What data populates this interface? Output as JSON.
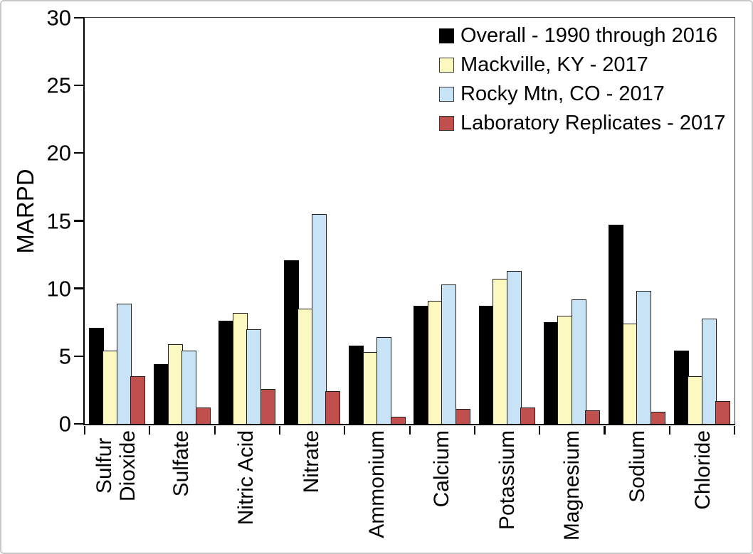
{
  "chart_data": {
    "type": "bar",
    "title": "",
    "xlabel": "",
    "ylabel": "MARPD",
    "ylim": [
      0,
      30
    ],
    "yticks": [
      0,
      5,
      10,
      15,
      20,
      25,
      30
    ],
    "grid": false,
    "legend_position": "top-right-inside",
    "categories": [
      "Sulfur\nDioxide",
      "Sulfate",
      "Nitric Acid",
      "Nitrate",
      "Ammonium",
      "Calcium",
      "Potassium",
      "Magnesium",
      "Sodium",
      "Chloride"
    ],
    "series": [
      {
        "name": "Overall - 1990 through 2016",
        "color": "#000000",
        "values": [
          7.1,
          4.4,
          7.6,
          12.1,
          5.8,
          8.7,
          8.7,
          7.5,
          14.7,
          5.4
        ]
      },
      {
        "name": "Mackville, KY - 2017",
        "color": "#FBF8C0",
        "values": [
          5.4,
          5.9,
          8.2,
          8.5,
          5.3,
          9.1,
          10.7,
          8.0,
          7.4,
          3.5
        ]
      },
      {
        "name": "Rocky Mtn, CO - 2017",
        "color": "#C9E3F6",
        "values": [
          8.9,
          5.4,
          7.0,
          15.5,
          6.4,
          10.3,
          11.3,
          9.2,
          9.8,
          7.8
        ]
      },
      {
        "name": "Laboratory Replicates - 2017",
        "color": "#C0504D",
        "values": [
          3.5,
          1.2,
          2.6,
          2.4,
          0.5,
          1.1,
          1.2,
          1.0,
          0.9,
          1.7
        ]
      }
    ]
  },
  "colors": {
    "axis": "#000000",
    "frame": "#3a3a3a",
    "bar_border": "#1f1f1f",
    "background": "#ffffff"
  }
}
